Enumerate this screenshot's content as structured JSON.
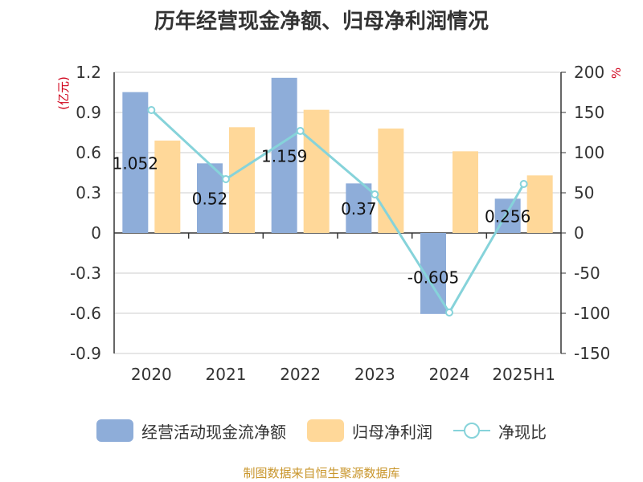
{
  "chart_data": {
    "type": "bar",
    "title": "历年经营现金净额、归母净利润情况",
    "categories": [
      "2020",
      "2021",
      "2022",
      "2023",
      "2024",
      "2025H1"
    ],
    "y_left": {
      "unit_label": "(亿元)",
      "ylim": [
        -0.9,
        1.2
      ],
      "ticks": [
        "1.2",
        "0.9",
        "0.6",
        "0.3",
        "0",
        "-0.3",
        "-0.6",
        "-0.9"
      ]
    },
    "y_right": {
      "unit_label": "%",
      "ylim": [
        -150,
        200
      ],
      "ticks": [
        "200",
        "150",
        "100",
        "50",
        "0",
        "-50",
        "-100",
        "-150"
      ]
    },
    "series": [
      {
        "name": "经营活动现金流净额",
        "type": "bar",
        "axis": "left",
        "values": [
          1.052,
          0.52,
          1.159,
          0.37,
          -0.605,
          0.256
        ],
        "labels": [
          "1.052",
          "0.52",
          "1.159",
          "0.37",
          "-0.605",
          "0.256"
        ]
      },
      {
        "name": "归母净利润",
        "type": "bar",
        "axis": "left",
        "values": [
          0.69,
          0.79,
          0.92,
          0.78,
          0.61,
          0.43
        ]
      },
      {
        "name": "净现比",
        "type": "line",
        "axis": "right",
        "values": [
          153,
          67,
          127,
          48,
          -99,
          61
        ]
      }
    ],
    "grid": true,
    "legend_position": "bottom"
  },
  "colors": {
    "cash_flow": "#8eadd9",
    "net_profit": "#ffd899",
    "ratio": "#86d3da",
    "unit_label": "#d0021b",
    "axis": "#333333",
    "grid": "#cccccc"
  },
  "source": "制图数据来自恒生聚源数据库"
}
